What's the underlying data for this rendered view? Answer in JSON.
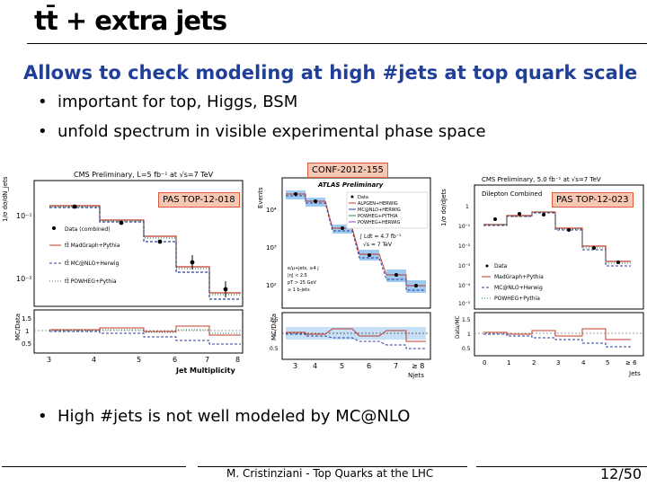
{
  "slide": {
    "title": "tt̄ + extra jets",
    "subtitle": "Allows to check modeling at high #jets at top quark scale",
    "bullets": [
      "important for top, Higgs, BSM",
      "unfold spectrum in visible experimental phase space"
    ],
    "bottom_bullet": "High #jets is not well modeled by MC@NLO",
    "footer": "M. Cristinziani - Top Quarks at the LHC",
    "page": "12/50"
  },
  "tags": {
    "left": "PAS TOP-12-018",
    "middle": "CONF-2012-155",
    "right": "PAS TOP-12-023"
  },
  "colors": {
    "subtitle": "#1f3f9a",
    "tag_fill": "#f6c7b3",
    "tag_border": "#e05a3a",
    "data": "#000000",
    "madgraph": "#c0392b",
    "mcatnlo": "#2c3e9e",
    "powheg": "#2e8b57"
  },
  "plots": {
    "left": {
      "header": "CMS Preliminary, L=5 fb⁻¹ at √s=7 TeV",
      "ylabel_top": "1/σ dσ/dN_jets",
      "ylabel_ratio": "MC/Data",
      "xlabel": "Jet Multiplicity",
      "x_ticks": [
        "3",
        "4",
        "5",
        "6",
        "7",
        "8"
      ],
      "y_ticks": [
        "10⁻¹",
        "10⁻²"
      ],
      "ratio_ticks": [
        "1.5",
        "1",
        "0.5"
      ],
      "legend": [
        "Data (combined)",
        "tt̄ MadGraph+Pythia",
        "tt̄ MC@NLO+Herwig",
        "tt̄ POWHEG+Pythia"
      ]
    },
    "middle": {
      "header": "ATLAS Preliminary",
      "ylabel_top": "Events",
      "ylabel_ratio": "MC/Data",
      "xlabel": "Njets",
      "x_ticks": [
        "3",
        "4",
        "5",
        "6",
        "7",
        "≥ 8"
      ],
      "y_ticks": [
        "10⁴",
        "10³",
        "10²"
      ],
      "ratio_ticks": [
        "1.5",
        "1",
        "0.5"
      ],
      "annotations": [
        "∫ Ldt = 4.7 fb⁻¹",
        "√s = 7 TeV",
        "e/μ+jets, ≥4 j",
        "|η| < 2.5",
        "pT > 25 GeV",
        "≥ 1 b-jets"
      ],
      "legend": [
        "Data",
        "ALPGEN+HERWIG",
        "MC@NLO+HERWIG",
        "POWHEG+PYTHIA",
        "POWHEG+HERWIG"
      ]
    },
    "right": {
      "header": "CMS Preliminary, 5.0 fb⁻¹ at √s=7 TeV",
      "subheader": "Dilepton Combined",
      "ylabel_top": "1/σ dσ/dJets",
      "ylabel_ratio": "Data/MC",
      "xlabel": "Jets",
      "x_ticks": [
        "0",
        "1",
        "2",
        "3",
        "4",
        "5",
        "≥ 6"
      ],
      "y_ticks": [
        "1",
        "10⁻¹",
        "10⁻²",
        "10⁻³",
        "10⁻⁴",
        "10⁻⁵"
      ],
      "ratio_ticks": [
        "1.5",
        "1",
        "0.5"
      ],
      "legend": [
        "Data",
        "MadGraph+Pythia",
        "MC@NLO+Herwig",
        "POWHEG+Pythia"
      ]
    }
  }
}
